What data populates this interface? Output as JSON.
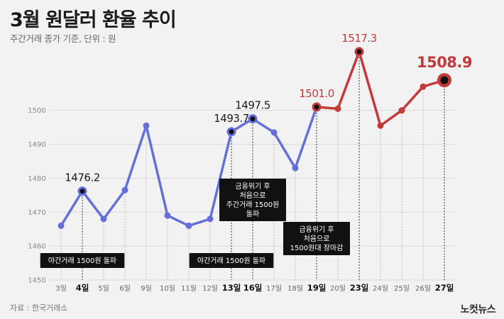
{
  "title": "3월 원달러 환율 추이",
  "subtitle": "주간거래 종가 기준, 단위 : 원",
  "source": "자료 : 한국거래소",
  "logo": "노컷뉴스",
  "colors": {
    "blue": "#6470d8",
    "red": "#c23a3a",
    "background": "#f2f2f2"
  },
  "chart_data": {
    "type": "line",
    "categories": [
      "3일",
      "4일",
      "5일",
      "6일",
      "9일",
      "10일",
      "11일",
      "12일",
      "13일",
      "16일",
      "17일",
      "18일",
      "19일",
      "20일",
      "23일",
      "24일",
      "25일",
      "26일",
      "27일"
    ],
    "values": [
      1466,
      1476.2,
      1468,
      1476.5,
      1495.5,
      1469,
      1466,
      1468,
      1493.7,
      1497.5,
      1493.5,
      1483,
      1501.0,
      1500.5,
      1517.3,
      1495.5,
      1500,
      1507,
      1508.9
    ],
    "ylim": [
      1450,
      1520
    ],
    "yticks": [
      1450,
      1460,
      1470,
      1480,
      1490,
      1500
    ],
    "grid": true,
    "highlighted_categories": [
      "4일",
      "13일",
      "16일",
      "19일",
      "23일",
      "27일"
    ],
    "red_from_index": 12,
    "value_labels": [
      {
        "index": 1,
        "text": "1476.2",
        "style": "normal"
      },
      {
        "index": 8,
        "text": "1493.7",
        "style": "normal"
      },
      {
        "index": 9,
        "text": "1497.5",
        "style": "normal"
      },
      {
        "index": 12,
        "text": "1501.0",
        "style": "red"
      },
      {
        "index": 14,
        "text": "1517.3",
        "style": "red"
      },
      {
        "index": 18,
        "text": "1508.9",
        "style": "big"
      }
    ],
    "annotations": [
      {
        "index": 1,
        "lines": [
          "야간거래 1500원 돌파"
        ]
      },
      {
        "index": 8,
        "lines": [
          "야간거래 1500원 돌파"
        ]
      },
      {
        "index": 9,
        "lines": [
          "금융위기 후",
          "처음으로",
          "주간거래 1500원",
          "돌파"
        ]
      },
      {
        "index": 12,
        "lines": [
          "금융위기 후",
          "처음으로",
          "1500원대 장마감"
        ]
      }
    ]
  }
}
